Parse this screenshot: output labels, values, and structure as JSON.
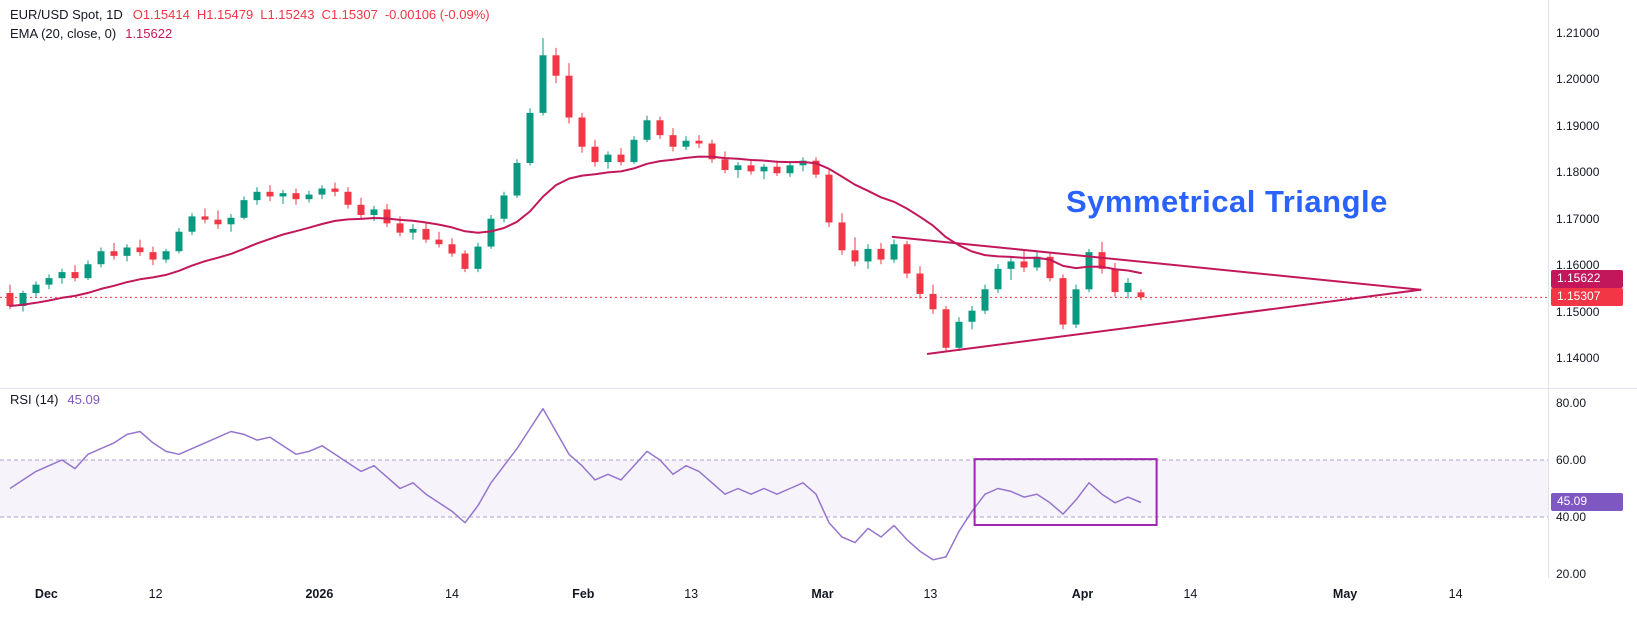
{
  "header": {
    "symbol": "EUR/USD Spot, 1D",
    "ohlc": [
      {
        "label": "O",
        "value": "1.15414"
      },
      {
        "label": "H",
        "value": "1.15479"
      },
      {
        "label": "L",
        "value": "1.15243"
      },
      {
        "label": "C",
        "value": "1.15307"
      }
    ],
    "change": "-0.00106 (-0.09%)",
    "ema_label": "EMA (20, close, 0)",
    "ema_value": "1.15622"
  },
  "rsi_header": {
    "label": "RSI (14)",
    "value": "45.09"
  },
  "annotation": {
    "text": "Symmetrical Triangle"
  },
  "price_axis": {
    "ema_badge": "1.15622",
    "last_badge": "1.15307"
  },
  "rsi_axis": {
    "badge": "45.09"
  },
  "colors": {
    "up": "#089981",
    "down": "#f23645",
    "ema": "#c2185b",
    "triangle": "#c2185b",
    "rsi_line": "#9575cd",
    "rsi_band_fill": "rgba(126,87,194,0.07)",
    "rsi_band_line": "#ada0cc",
    "rsi_box": "#9c27b0",
    "annotation": "#2962ff",
    "badge_ema_bg": "#c2185b",
    "badge_last_bg": "#f23645",
    "badge_rsi_bg": "#7e57c2",
    "separator": "#e0e3eb",
    "last_price_line": "#f23645"
  },
  "chart_data": [
    {
      "type": "candlestick",
      "title": "EUR/USD Spot, 1D",
      "ylabel": "Price",
      "visible_price_range": [
        1.134,
        1.217
      ],
      "ema_period": 20,
      "ema_last": 1.15622,
      "last_price": 1.15307,
      "y_ticks": [
        {
          "label": "1.21000",
          "v": 1.21
        },
        {
          "label": "1.20000",
          "v": 1.2
        },
        {
          "label": "1.19000",
          "v": 1.19
        },
        {
          "label": "1.18000",
          "v": 1.18
        },
        {
          "label": "1.17000",
          "v": 1.17
        },
        {
          "label": "1.16000",
          "v": 1.16
        },
        {
          "label": "1.15000",
          "v": 1.15
        },
        {
          "label": "1.14000",
          "v": 1.14
        }
      ],
      "x_ticks": [
        {
          "label": "Dec",
          "i": 2.8,
          "bold": true
        },
        {
          "label": "12",
          "i": 11.2,
          "bold": false
        },
        {
          "label": "2026",
          "i": 23.8,
          "bold": true
        },
        {
          "label": "14",
          "i": 34,
          "bold": false
        },
        {
          "label": "Feb",
          "i": 44.1,
          "bold": true
        },
        {
          "label": "13",
          "i": 52.4,
          "bold": false
        },
        {
          "label": "Mar",
          "i": 62.5,
          "bold": true
        },
        {
          "label": "13",
          "i": 70.8,
          "bold": false
        },
        {
          "label": "Apr",
          "i": 82.5,
          "bold": true
        },
        {
          "label": "14",
          "i": 90.8,
          "bold": false
        },
        {
          "label": "May",
          "i": 102.7,
          "bold": true
        },
        {
          "label": "14",
          "i": 111.2,
          "bold": false
        }
      ],
      "triangle": {
        "upper": [
          [
            67.9,
            1.1661
          ],
          [
            108.5,
            1.1547
          ]
        ],
        "lower": [
          [
            70.6,
            1.1409
          ],
          [
            108.5,
            1.1547
          ]
        ]
      },
      "candles": [
        [
          1.154,
          1.1558,
          1.1505,
          1.1512
        ],
        [
          1.1512,
          1.1545,
          1.15,
          1.154
        ],
        [
          1.154,
          1.1565,
          1.1532,
          1.1558
        ],
        [
          1.1558,
          1.158,
          1.1548,
          1.1572
        ],
        [
          1.1572,
          1.1592,
          1.156,
          1.1585
        ],
        [
          1.1585,
          1.16,
          1.1565,
          1.1572
        ],
        [
          1.1572,
          1.161,
          1.1568,
          1.1602
        ],
        [
          1.1602,
          1.1638,
          1.1595,
          1.163
        ],
        [
          1.163,
          1.1648,
          1.1612,
          1.162
        ],
        [
          1.162,
          1.1645,
          1.1608,
          1.1638
        ],
        [
          1.1638,
          1.1655,
          1.162,
          1.1628
        ],
        [
          1.1628,
          1.164,
          1.16,
          1.1612
        ],
        [
          1.1612,
          1.1635,
          1.1605,
          1.163
        ],
        [
          1.163,
          1.168,
          1.1625,
          1.1672
        ],
        [
          1.1672,
          1.1712,
          1.1665,
          1.1705
        ],
        [
          1.1705,
          1.1722,
          1.169,
          1.1698
        ],
        [
          1.1698,
          1.1718,
          1.1678,
          1.1688
        ],
        [
          1.1688,
          1.171,
          1.1672,
          1.1702
        ],
        [
          1.1702,
          1.1748,
          1.1698,
          1.174
        ],
        [
          1.174,
          1.1768,
          1.173,
          1.1758
        ],
        [
          1.1758,
          1.1772,
          1.1738,
          1.1748
        ],
        [
          1.1748,
          1.1762,
          1.1732,
          1.1755
        ],
        [
          1.1755,
          1.1765,
          1.173,
          1.1742
        ],
        [
          1.1742,
          1.176,
          1.1735,
          1.1752
        ],
        [
          1.1752,
          1.1772,
          1.1742,
          1.1765
        ],
        [
          1.1765,
          1.1778,
          1.1748,
          1.1758
        ],
        [
          1.1758,
          1.1768,
          1.1722,
          1.173
        ],
        [
          1.173,
          1.1745,
          1.17,
          1.1708
        ],
        [
          1.1708,
          1.1728,
          1.1695,
          1.172
        ],
        [
          1.172,
          1.1732,
          1.1682,
          1.169
        ],
        [
          1.169,
          1.1705,
          1.1662,
          1.167
        ],
        [
          1.167,
          1.1688,
          1.1655,
          1.1678
        ],
        [
          1.1678,
          1.169,
          1.1648,
          1.1655
        ],
        [
          1.1655,
          1.1672,
          1.1638,
          1.1645
        ],
        [
          1.1645,
          1.1658,
          1.1618,
          1.1625
        ],
        [
          1.1625,
          1.1632,
          1.1585,
          1.1592
        ],
        [
          1.1592,
          1.1648,
          1.1585,
          1.164
        ],
        [
          1.164,
          1.1708,
          1.1635,
          1.17
        ],
        [
          1.17,
          1.1758,
          1.1692,
          1.175
        ],
        [
          1.175,
          1.1828,
          1.1745,
          1.182
        ],
        [
          1.182,
          1.1938,
          1.1815,
          1.1928
        ],
        [
          1.1928,
          1.2089,
          1.1922,
          1.2052
        ],
        [
          1.2052,
          1.2068,
          1.1992,
          1.2008
        ],
        [
          1.2008,
          1.2035,
          1.1905,
          1.1918
        ],
        [
          1.1918,
          1.1928,
          1.1842,
          1.1855
        ],
        [
          1.1855,
          1.187,
          1.1812,
          1.1822
        ],
        [
          1.1822,
          1.1845,
          1.1808,
          1.1838
        ],
        [
          1.1838,
          1.1852,
          1.1815,
          1.1822
        ],
        [
          1.1822,
          1.1878,
          1.1818,
          1.187
        ],
        [
          1.187,
          1.1922,
          1.1865,
          1.1912
        ],
        [
          1.1912,
          1.192,
          1.1872,
          1.188
        ],
        [
          1.188,
          1.1895,
          1.1845,
          1.1855
        ],
        [
          1.1855,
          1.1878,
          1.1848,
          1.1868
        ],
        [
          1.1868,
          1.188,
          1.1852,
          1.1862
        ],
        [
          1.1862,
          1.187,
          1.182,
          1.1828
        ],
        [
          1.1828,
          1.1845,
          1.1798,
          1.1805
        ],
        [
          1.1805,
          1.1822,
          1.1788,
          1.1815
        ],
        [
          1.1815,
          1.1828,
          1.1795,
          1.1802
        ],
        [
          1.1802,
          1.1818,
          1.1785,
          1.1812
        ],
        [
          1.1812,
          1.1825,
          1.1792,
          1.1798
        ],
        [
          1.1798,
          1.1822,
          1.179,
          1.1815
        ],
        [
          1.1815,
          1.1832,
          1.1802,
          1.1825
        ],
        [
          1.1825,
          1.1832,
          1.1788,
          1.1795
        ],
        [
          1.1795,
          1.1805,
          1.1682,
          1.1692
        ],
        [
          1.1692,
          1.1712,
          1.1622,
          1.1632
        ],
        [
          1.1632,
          1.166,
          1.1598,
          1.1608
        ],
        [
          1.1608,
          1.1645,
          1.1592,
          1.1635
        ],
        [
          1.1635,
          1.1648,
          1.1602,
          1.1612
        ],
        [
          1.1612,
          1.1655,
          1.1605,
          1.1645
        ],
        [
          1.1645,
          1.1652,
          1.1572,
          1.1582
        ],
        [
          1.1582,
          1.1598,
          1.1528,
          1.1538
        ],
        [
          1.1538,
          1.1558,
          1.1495,
          1.1505
        ],
        [
          1.1505,
          1.1512,
          1.1412,
          1.1422
        ],
        [
          1.1422,
          1.1488,
          1.1415,
          1.1478
        ],
        [
          1.1478,
          1.1512,
          1.1462,
          1.1502
        ],
        [
          1.1502,
          1.1558,
          1.1495,
          1.1548
        ],
        [
          1.1548,
          1.1602,
          1.154,
          1.1592
        ],
        [
          1.1592,
          1.1618,
          1.1568,
          1.1608
        ],
        [
          1.1608,
          1.1632,
          1.1585,
          1.1595
        ],
        [
          1.1595,
          1.1628,
          1.1588,
          1.1618
        ],
        [
          1.1618,
          1.1628,
          1.1565,
          1.1572
        ],
        [
          1.1572,
          1.158,
          1.1462,
          1.1472
        ],
        [
          1.1472,
          1.1558,
          1.1465,
          1.1548
        ],
        [
          1.1548,
          1.1635,
          1.1542,
          1.1628
        ],
        [
          1.1628,
          1.165,
          1.1582,
          1.1592
        ],
        [
          1.1592,
          1.1605,
          1.1532,
          1.1542
        ],
        [
          1.1542,
          1.1572,
          1.1528,
          1.1562
        ],
        [
          1.15414,
          1.15479,
          1.15243,
          1.15307
        ]
      ]
    },
    {
      "type": "line",
      "title": "RSI (14)",
      "ylabel": "RSI",
      "ylim": [
        18.6,
        84.6
      ],
      "band": [
        40,
        60
      ],
      "last_value": 45.09,
      "y_ticks": [
        {
          "label": "80.00",
          "v": 80
        },
        {
          "label": "60.00",
          "v": 60
        },
        {
          "label": "40.00",
          "v": 40
        },
        {
          "label": "20.00",
          "v": 20
        }
      ],
      "box": {
        "i1": 74.2,
        "i2": 88.2,
        "v_top": 60.3,
        "v_bottom": 37.2
      },
      "values": [
        50,
        53,
        56,
        58,
        60,
        57,
        62,
        64,
        66,
        69,
        70,
        66,
        63,
        62,
        64,
        66,
        68,
        70,
        69,
        67,
        68,
        65,
        62,
        63,
        65,
        62,
        59,
        56,
        58,
        54,
        50,
        52,
        48,
        45,
        42,
        38,
        44,
        52,
        58,
        64,
        71,
        78,
        70,
        62,
        58,
        53,
        55,
        53,
        58,
        63,
        60,
        55,
        58,
        56,
        52,
        48,
        50,
        48,
        50,
        48,
        50,
        52,
        48,
        38,
        33,
        31,
        36,
        33,
        37,
        32,
        28,
        25,
        26,
        35,
        42,
        48,
        50,
        49,
        47,
        48,
        45,
        41,
        46,
        52,
        48,
        45,
        47,
        45.09
      ]
    }
  ]
}
